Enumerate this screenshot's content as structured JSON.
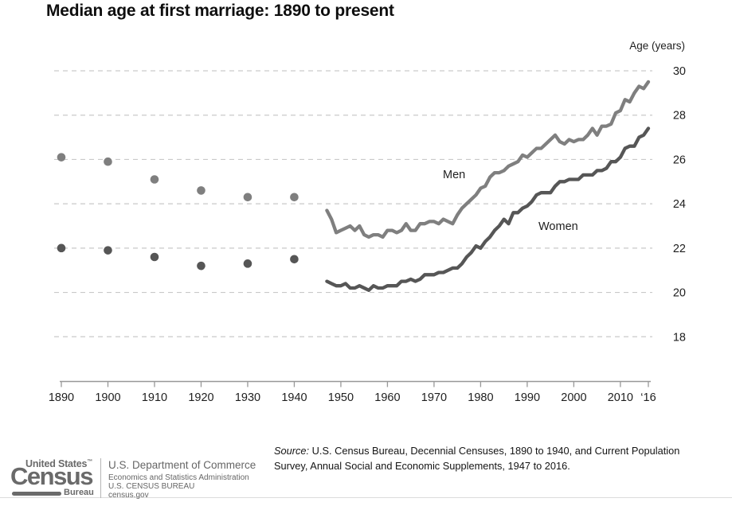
{
  "labels": {
    "men_annotation": "Men",
    "women_annotation": "Women"
  },
  "source": {
    "label": "Source:",
    "line1": "U.S. Census Bureau, Decennial Censuses, 1890 to 1940, and Current Population",
    "line2": "Survey, Annual Social and Economic Supplements, 1947 to 2016."
  },
  "footer": {
    "logo_top": "United States",
    "logo_tm": "™",
    "logo_census": "Census",
    "logo_bureau": "Bureau",
    "dept_line1": "U.S. Department of Commerce",
    "dept_line2": "Economics and Statistics Administration",
    "dept_line3": "U.S. CENSUS BUREAU",
    "dept_line4": "census.gov"
  },
  "chart_data": {
    "type": "line",
    "title": "Median age at first marriage: 1890 to present",
    "xlabel": "",
    "ylabel": "Age (years)",
    "ylim": [
      16,
      30
    ],
    "xlim": [
      1890,
      2016
    ],
    "grid": "horizontal-dashed",
    "legend_position": "inline-annotations",
    "colors": {
      "grid": "#c9c9c9",
      "axis": "#989898",
      "tick_text": "#1e1e1e"
    },
    "yticks": [
      18,
      20,
      22,
      24,
      26,
      28,
      30
    ],
    "xticks": [
      {
        "label": "1890",
        "year": 1890
      },
      {
        "label": "1900",
        "year": 1900
      },
      {
        "label": "1910",
        "year": 1910
      },
      {
        "label": "1920",
        "year": 1920
      },
      {
        "label": "1930",
        "year": 1930
      },
      {
        "label": "1940",
        "year": 1940
      },
      {
        "label": "1950",
        "year": 1950
      },
      {
        "label": "1960",
        "year": 1960
      },
      {
        "label": "1970",
        "year": 1970
      },
      {
        "label": "1980",
        "year": 1980
      },
      {
        "label": "1990",
        "year": 1990
      },
      {
        "label": "2000",
        "year": 2000
      },
      {
        "label": "2010",
        "year": 2010
      },
      {
        "label": "‘16",
        "year": 2016
      }
    ],
    "series": [
      {
        "id": "men-decennial",
        "name": "Men (Decennial Censuses)",
        "style": "points",
        "color": "#7f7f7f",
        "x": [
          1890,
          1900,
          1910,
          1920,
          1930,
          1940
        ],
        "y": [
          26.1,
          25.9,
          25.1,
          24.6,
          24.3,
          24.3
        ]
      },
      {
        "id": "women-decennial",
        "name": "Women (Decennial Censuses)",
        "style": "points",
        "color": "#565656",
        "x": [
          1890,
          1900,
          1910,
          1920,
          1930,
          1940
        ],
        "y": [
          22.0,
          21.9,
          21.6,
          21.2,
          21.3,
          21.5
        ]
      },
      {
        "id": "men-cps",
        "name": "Men (Current Population Survey)",
        "style": "line",
        "color": "#7f7f7f",
        "x": [
          1947,
          1948,
          1949,
          1950,
          1951,
          1952,
          1953,
          1954,
          1955,
          1956,
          1957,
          1958,
          1959,
          1960,
          1961,
          1962,
          1963,
          1964,
          1965,
          1966,
          1967,
          1968,
          1969,
          1970,
          1971,
          1972,
          1973,
          1974,
          1975,
          1976,
          1977,
          1978,
          1979,
          1980,
          1981,
          1982,
          1983,
          1984,
          1985,
          1986,
          1987,
          1988,
          1989,
          1990,
          1991,
          1992,
          1993,
          1994,
          1995,
          1996,
          1997,
          1998,
          1999,
          2000,
          2001,
          2002,
          2003,
          2004,
          2005,
          2006,
          2007,
          2008,
          2009,
          2010,
          2011,
          2012,
          2013,
          2014,
          2015,
          2016
        ],
        "y": [
          23.7,
          23.3,
          22.7,
          22.8,
          22.9,
          23.0,
          22.8,
          23.0,
          22.6,
          22.5,
          22.6,
          22.6,
          22.5,
          22.8,
          22.8,
          22.7,
          22.8,
          23.1,
          22.8,
          22.8,
          23.1,
          23.1,
          23.2,
          23.2,
          23.1,
          23.3,
          23.2,
          23.1,
          23.5,
          23.8,
          24.0,
          24.2,
          24.4,
          24.7,
          24.8,
          25.2,
          25.4,
          25.4,
          25.5,
          25.7,
          25.8,
          25.9,
          26.2,
          26.1,
          26.3,
          26.5,
          26.5,
          26.7,
          26.9,
          27.1,
          26.8,
          26.7,
          26.9,
          26.8,
          26.9,
          26.9,
          27.1,
          27.4,
          27.1,
          27.5,
          27.5,
          27.6,
          28.1,
          28.2,
          28.7,
          28.6,
          29.0,
          29.3,
          29.2,
          29.5
        ]
      },
      {
        "id": "women-cps",
        "name": "Women (Current Population Survey)",
        "style": "line",
        "color": "#565656",
        "x": [
          1947,
          1948,
          1949,
          1950,
          1951,
          1952,
          1953,
          1954,
          1955,
          1956,
          1957,
          1958,
          1959,
          1960,
          1961,
          1962,
          1963,
          1964,
          1965,
          1966,
          1967,
          1968,
          1969,
          1970,
          1971,
          1972,
          1973,
          1974,
          1975,
          1976,
          1977,
          1978,
          1979,
          1980,
          1981,
          1982,
          1983,
          1984,
          1985,
          1986,
          1987,
          1988,
          1989,
          1990,
          1991,
          1992,
          1993,
          1994,
          1995,
          1996,
          1997,
          1998,
          1999,
          2000,
          2001,
          2002,
          2003,
          2004,
          2005,
          2006,
          2007,
          2008,
          2009,
          2010,
          2011,
          2012,
          2013,
          2014,
          2015,
          2016
        ],
        "y": [
          20.5,
          20.4,
          20.3,
          20.3,
          20.4,
          20.2,
          20.2,
          20.3,
          20.2,
          20.1,
          20.3,
          20.2,
          20.2,
          20.3,
          20.3,
          20.3,
          20.5,
          20.5,
          20.6,
          20.5,
          20.6,
          20.8,
          20.8,
          20.8,
          20.9,
          20.9,
          21.0,
          21.1,
          21.1,
          21.3,
          21.6,
          21.8,
          22.1,
          22.0,
          22.3,
          22.5,
          22.8,
          23.0,
          23.3,
          23.1,
          23.6,
          23.6,
          23.8,
          23.9,
          24.1,
          24.4,
          24.5,
          24.5,
          24.5,
          24.8,
          25.0,
          25.0,
          25.1,
          25.1,
          25.1,
          25.3,
          25.3,
          25.3,
          25.5,
          25.5,
          25.6,
          25.9,
          25.9,
          26.1,
          26.5,
          26.6,
          26.6,
          27.0,
          27.1,
          27.4
        ]
      }
    ],
    "annotations": [
      {
        "text": "Men",
        "series": "men-cps"
      },
      {
        "text": "Women",
        "series": "women-cps"
      }
    ]
  }
}
